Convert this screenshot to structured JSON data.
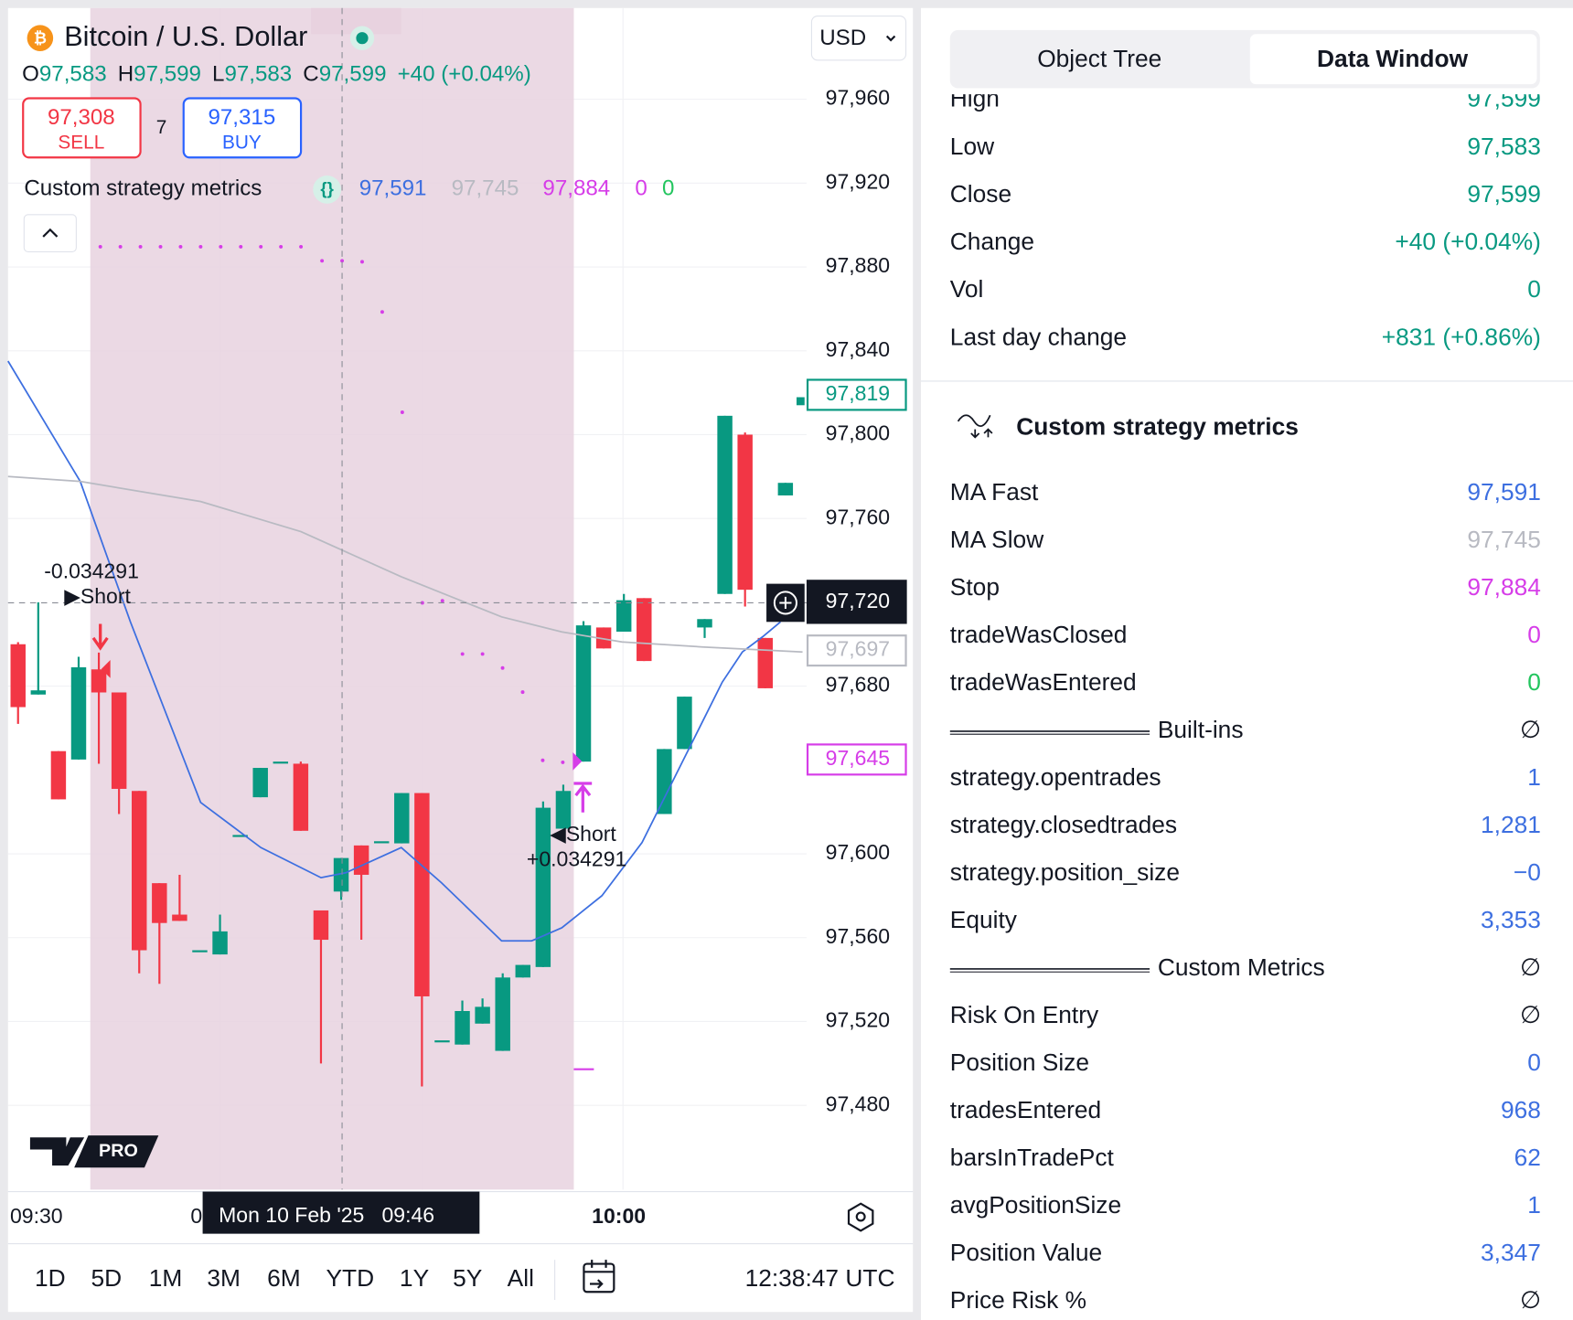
{
  "header": {
    "symbol": "Bitcoin / U.S. Dollar",
    "currency": "USD",
    "ohlc": [
      {
        "letter": "O",
        "value": "97,583"
      },
      {
        "letter": "H",
        "value": "97,599"
      },
      {
        "letter": "L",
        "value": "97,583"
      },
      {
        "letter": "C",
        "value": "97,599"
      }
    ],
    "change": "+40 (+0.04%)",
    "sell_price": "97,308",
    "sell_label": "SELL",
    "spread": "7",
    "buy_price": "97,315",
    "buy_label": "BUY"
  },
  "indicator": {
    "name": "Custom strategy metrics",
    "values": [
      {
        "text": "97,591",
        "color": "#3d6fe0"
      },
      {
        "text": "97,745",
        "color": "#b8bac2"
      },
      {
        "text": "97,884",
        "color": "#d63de8"
      },
      {
        "text": "0",
        "color": "#d63de8"
      },
      {
        "text": "0",
        "color": "#22c55e"
      }
    ]
  },
  "chart": {
    "price_ticks": [
      {
        "value": 97960,
        "label": "97,960"
      },
      {
        "value": 97920,
        "label": "97,920"
      },
      {
        "value": 97880,
        "label": "97,880"
      },
      {
        "value": 97840,
        "label": "97,840"
      },
      {
        "value": 97800,
        "label": "97,800"
      },
      {
        "value": 97760,
        "label": "97,760"
      },
      {
        "value": 97680,
        "label": "97,680"
      },
      {
        "value": 97600,
        "label": "97,600"
      },
      {
        "value": 97560,
        "label": "97,560"
      },
      {
        "value": 97520,
        "label": "97,520"
      },
      {
        "value": 97480,
        "label": "97,480"
      }
    ],
    "price_badges": [
      {
        "value": 97819,
        "label": "97,819",
        "color": "#089981"
      },
      {
        "value": 97697,
        "label": "97,697",
        "color": "#b8bac2"
      },
      {
        "value": 97645,
        "label": "97,645",
        "color": "#d63de8"
      }
    ],
    "crosshair_price": {
      "value": 97720,
      "label": "97,720"
    },
    "crosshair_time": "Mon 10 Feb '25   09:46",
    "time_labels": [
      "09:30",
      "0",
      "10:00"
    ],
    "trade_labels": [
      "-0.034291",
      "▶Short",
      "◀Short",
      "+0.034291"
    ],
    "candles": [
      {
        "open": 97700,
        "high": 97701,
        "low": 97662,
        "close": 97670
      },
      {
        "open": 97676,
        "high": 97720,
        "low": 97676,
        "close": 97678
      },
      {
        "open": 97649,
        "high": 97649,
        "low": 97626,
        "close": 97626
      },
      {
        "open": 97645,
        "high": 97694,
        "low": 97645,
        "close": 97689
      },
      {
        "open": 97688,
        "high": 97696,
        "low": 97643,
        "close": 97677
      },
      {
        "open": 97677,
        "high": 97677,
        "low": 97619,
        "close": 97631
      },
      {
        "open": 97630,
        "high": 97630,
        "low": 97543,
        "close": 97554
      },
      {
        "open": 97586,
        "high": 97586,
        "low": 97538,
        "close": 97567
      },
      {
        "open": 97571,
        "high": 97590,
        "low": 97568,
        "close": 97568
      },
      {
        "open": 97554,
        "high": 97554,
        "low": 97554,
        "close": 97554
      },
      {
        "open": 97552,
        "high": 97571,
        "low": 97552,
        "close": 97563
      },
      {
        "open": 97609,
        "high": 97609,
        "low": 97609,
        "close": 97609
      },
      {
        "open": 97627,
        "high": 97641,
        "low": 97627,
        "close": 97641
      },
      {
        "open": 97644,
        "high": 97644,
        "low": 97644,
        "close": 97644
      },
      {
        "open": 97643,
        "high": 97644,
        "low": 97611,
        "close": 97611
      },
      {
        "open": 97573,
        "high": 97573,
        "low": 97500,
        "close": 97559
      },
      {
        "open": 97582,
        "high": 97598,
        "low": 97578,
        "close": 97598
      },
      {
        "open": 97604,
        "high": 97604,
        "low": 97559,
        "close": 97590
      },
      {
        "open": 97606,
        "high": 97606,
        "low": 97606,
        "close": 97606
      },
      {
        "open": 97605,
        "high": 97629,
        "low": 97605,
        "close": 97629
      },
      {
        "open": 97629,
        "high": 97629,
        "low": 97489,
        "close": 97532
      },
      {
        "open": 97511,
        "high": 97511,
        "low": 97511,
        "close": 97511
      },
      {
        "open": 97509,
        "high": 97530,
        "low": 97509,
        "close": 97525
      },
      {
        "open": 97519,
        "high": 97531,
        "low": 97519,
        "close": 97527
      },
      {
        "open": 97506,
        "high": 97543,
        "low": 97506,
        "close": 97541
      },
      {
        "open": 97541,
        "high": 97547,
        "low": 97541,
        "close": 97547
      },
      {
        "open": 97546,
        "high": 97625,
        "low": 97546,
        "close": 97622
      },
      {
        "open": 97612,
        "high": 97633,
        "low": 97612,
        "close": 97630
      },
      {
        "open": 97644,
        "high": 97711,
        "low": 97644,
        "close": 97709
      },
      {
        "open": 97708,
        "high": 97708,
        "low": 97698,
        "close": 97698
      },
      {
        "open": 97706,
        "high": 97724,
        "low": 97706,
        "close": 97721
      },
      {
        "open": 97722,
        "high": 97722,
        "low": 97692,
        "close": 97692
      },
      {
        "open": 97619,
        "high": 97650,
        "low": 97619,
        "close": 97650
      },
      {
        "open": 97650,
        "high": 97675,
        "low": 97650,
        "close": 97675
      },
      {
        "open": 97708,
        "high": 97712,
        "low": 97703,
        "close": 97712
      },
      {
        "open": 97724,
        "high": 97809,
        "low": 97724,
        "close": 97809
      },
      {
        "open": 97800,
        "high": 97801,
        "low": 97718,
        "close": 97726
      },
      {
        "open": 97703,
        "high": 97703,
        "low": 97679,
        "close": 97679
      },
      {
        "open": 97771,
        "high": 97777,
        "low": 97771,
        "close": 97777
      }
    ]
  },
  "toolbar": {
    "ranges": [
      "1D",
      "5D",
      "1M",
      "3M",
      "6M",
      "YTD",
      "1Y",
      "5Y",
      "All"
    ],
    "clock": "12:38:47 UTC"
  },
  "panel": {
    "tabs": [
      "Object Tree",
      "Data Window"
    ],
    "rows": [
      {
        "label": "High",
        "value": "97,599",
        "color": "#089981"
      },
      {
        "label": "Low",
        "value": "97,583",
        "color": "#089981"
      },
      {
        "label": "Close",
        "value": "97,599",
        "color": "#089981"
      },
      {
        "label": "Change",
        "value": "+40 (+0.04%)",
        "color": "#089981"
      },
      {
        "label": "Vol",
        "value": "0",
        "color": "#089981"
      },
      {
        "label": "Last day change",
        "value": "+831 (+0.86%)",
        "color": "#089981"
      }
    ],
    "section_title": "Custom strategy metrics",
    "metrics": [
      {
        "label": "MA Fast",
        "value": "97,591",
        "color": "#3d6fe0"
      },
      {
        "label": "MA Slow",
        "value": "97,745",
        "color": "#b8bac2"
      },
      {
        "label": "Stop",
        "value": "97,884",
        "color": "#d63de8"
      },
      {
        "label": "tradeWasClosed",
        "value": "0",
        "color": "#d63de8"
      },
      {
        "label": "tradeWasEntered",
        "value": "0",
        "color": "#22c55e"
      },
      {
        "label": "Built-ins",
        "value": "∅",
        "color": "#131722",
        "divider": true
      },
      {
        "label": "strategy.opentrades",
        "value": "1",
        "color": "#3d6fe0"
      },
      {
        "label": "strategy.closedtrades",
        "value": "1,281",
        "color": "#3d6fe0"
      },
      {
        "label": "strategy.position_size",
        "value": "−0",
        "color": "#3d6fe0"
      },
      {
        "label": "Equity",
        "value": "3,353",
        "color": "#3d6fe0"
      },
      {
        "label": "Custom Metrics",
        "value": "∅",
        "color": "#131722",
        "divider": true
      },
      {
        "label": "Risk On Entry",
        "value": "∅",
        "color": "#131722"
      },
      {
        "label": "Position Size",
        "value": "0",
        "color": "#3d6fe0"
      },
      {
        "label": "tradesEntered",
        "value": "968",
        "color": "#3d6fe0"
      },
      {
        "label": "barsInTradePct",
        "value": "62",
        "color": "#3d6fe0"
      },
      {
        "label": "avgPositionSize",
        "value": "1",
        "color": "#3d6fe0"
      },
      {
        "label": "Position Value",
        "value": "3,347",
        "color": "#3d6fe0"
      },
      {
        "label": "Price Risk %",
        "value": "∅",
        "color": "#131722"
      }
    ]
  }
}
